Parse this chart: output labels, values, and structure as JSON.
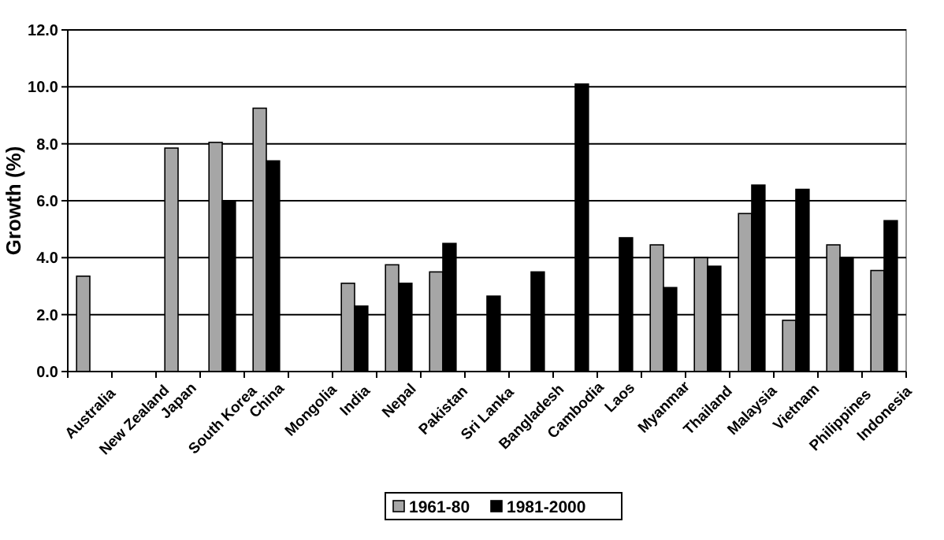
{
  "chart_data": {
    "type": "bar",
    "ylabel": "Growth (%)",
    "categories": [
      "Australia",
      "New Zealand",
      "Japan",
      "South Korea",
      "China",
      "Mongolia",
      "India",
      "Nepal",
      "Pakistan",
      "Sri Lanka",
      "Bangladesh",
      "Cambodia",
      "Laos",
      "Myanmar",
      "Thailand",
      "Malaysia",
      "Vietnam",
      "Philippines",
      "Indonesia"
    ],
    "series": [
      {
        "name": "1961-80",
        "color": "#a6a6a6",
        "values": [
          3.35,
          null,
          7.85,
          8.05,
          9.25,
          null,
          3.1,
          3.75,
          3.5,
          null,
          null,
          null,
          null,
          4.45,
          4.0,
          5.55,
          1.8,
          4.45,
          3.55
        ]
      },
      {
        "name": "1981-2000",
        "color": "#000000",
        "values": [
          null,
          null,
          null,
          6.0,
          7.4,
          null,
          2.3,
          3.1,
          4.5,
          2.65,
          3.5,
          10.1,
          4.7,
          2.95,
          3.7,
          6.55,
          6.4,
          4.0,
          5.3
        ]
      }
    ],
    "ylim": [
      0,
      12
    ],
    "yticks": [
      {
        "value": 0,
        "label": "0.0"
      },
      {
        "value": 2,
        "label": "2.0"
      },
      {
        "value": 4,
        "label": "4.0"
      },
      {
        "value": 6,
        "label": "6.0"
      },
      {
        "value": 8,
        "label": "8.0"
      },
      {
        "value": 10,
        "label": "10.0"
      },
      {
        "value": 12,
        "label": "12.0"
      }
    ],
    "grid": "y",
    "legend": "bottom"
  }
}
